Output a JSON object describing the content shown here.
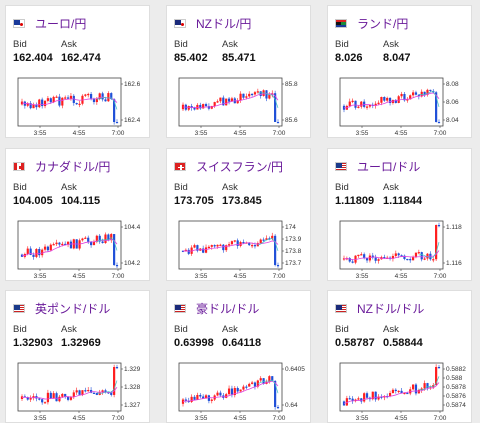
{
  "labels": {
    "bid": "Bid",
    "ask": "Ask"
  },
  "colors": {
    "title": "#6a1b9a",
    "up": "#ff1e1e",
    "down": "#1f4fd8",
    "ma1": "#e040e0",
    "ma2": "#40c0c0"
  },
  "cards": [
    {
      "pair": "ユーロ/円",
      "flag_icon": "flag-eu-jp-icon",
      "bid": "162.404",
      "ask": "162.474",
      "yticks": [
        "162.6",
        "162.4"
      ],
      "xticks": [
        "3:55",
        "4:55",
        "7:00"
      ]
    },
    {
      "pair": "NZドル/円",
      "flag_icon": "flag-nz-jp-icon",
      "bid": "85.402",
      "ask": "85.471",
      "yticks": [
        "85.8",
        "85.6"
      ],
      "xticks": [
        "3:55",
        "4:55",
        "7:00"
      ]
    },
    {
      "pair": "ランド/円",
      "flag_icon": "flag-za-jp-icon",
      "bid": "8.026",
      "ask": "8.047",
      "yticks": [
        "8.08",
        "8.06",
        "8.04"
      ],
      "xticks": [
        "3:55",
        "4:55",
        "7:00"
      ]
    },
    {
      "pair": "カナダドル/円",
      "flag_icon": "flag-ca-jp-icon",
      "bid": "104.005",
      "ask": "104.115",
      "yticks": [
        "104.4",
        "104.2"
      ],
      "xticks": [
        "3:55",
        "4:55",
        "7:00"
      ]
    },
    {
      "pair": "スイスフラン/円",
      "flag_icon": "flag-ch-jp-icon",
      "bid": "173.705",
      "ask": "173.845",
      "yticks": [
        "174",
        "173.9",
        "173.8",
        "173.7"
      ],
      "xticks": [
        "3:55",
        "4:55",
        "7:00"
      ]
    },
    {
      "pair": "ユーロ/ドル",
      "flag_icon": "flag-eu-us-icon",
      "bid": "1.11809",
      "ask": "1.11844",
      "yticks": [
        "1.118",
        "1.116"
      ],
      "xticks": [
        "3:55",
        "4:55",
        "7:00"
      ]
    },
    {
      "pair": "英ポンド/ドル",
      "flag_icon": "flag-gb-us-icon",
      "bid": "1.32903",
      "ask": "1.32969",
      "yticks": [
        "1.329",
        "1.328",
        "1.327"
      ],
      "xticks": [
        "3:55",
        "4:55",
        "7:00"
      ]
    },
    {
      "pair": "豪ドル/ドル",
      "flag_icon": "flag-au-us-icon",
      "bid": "0.63998",
      "ask": "0.64118",
      "yticks": [
        "0.6405",
        "0.64"
      ],
      "xticks": [
        "3:55",
        "4:55",
        "7:00"
      ]
    },
    {
      "pair": "NZドル/ドル",
      "flag_icon": "flag-nz-us-icon",
      "bid": "0.58787",
      "ask": "0.58844",
      "yticks": [
        "0.5882",
        "0.588",
        "0.5878",
        "0.5876",
        "0.5874"
      ],
      "xticks": [
        "3:55",
        "4:55",
        "7:00"
      ]
    }
  ]
}
